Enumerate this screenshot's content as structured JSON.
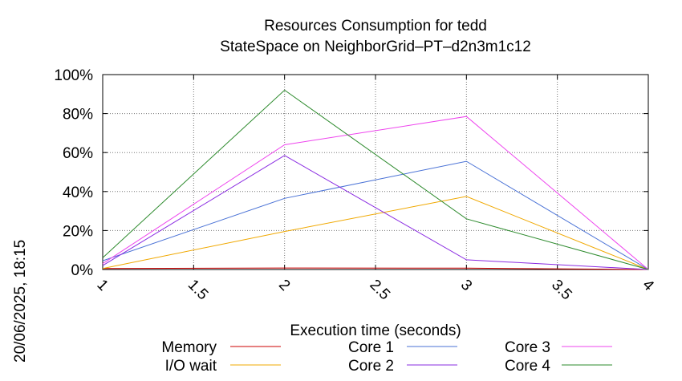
{
  "chart_data": {
    "type": "line",
    "title_lines": [
      "Resources Consumption for tedd",
      "StateSpace on NeighborGrid–PT–d2n3m1c12"
    ],
    "xlabel": "Execution time (seconds)",
    "ylabel": "",
    "xlim": [
      1,
      4
    ],
    "ylim": [
      0,
      100
    ],
    "x_ticks": [
      "1",
      "1.5",
      "2",
      "2.5",
      "3",
      "3.5",
      "4"
    ],
    "y_ticks": [
      "0%",
      "20%",
      "40%",
      "60%",
      "80%",
      "100%"
    ],
    "grid": true,
    "side_stamp": "20/06/2025, 18:15",
    "legend_position": "bottom",
    "x": [
      1,
      2,
      3,
      4
    ],
    "series": [
      {
        "name": "Memory",
        "color": "#cc0000",
        "values": [
          0.5,
          0.8,
          0.7,
          0.0
        ]
      },
      {
        "name": "I/O wait",
        "color": "#f0a800",
        "values": [
          0.5,
          19.5,
          37.5,
          0.0
        ]
      },
      {
        "name": "Core 1",
        "color": "#4a72d6",
        "values": [
          4.5,
          36.5,
          55.5,
          0.0
        ]
      },
      {
        "name": "Core 2",
        "color": "#8a2be2",
        "values": [
          2.0,
          58.5,
          5.0,
          0.0
        ]
      },
      {
        "name": "Core 3",
        "color": "#ee44ee",
        "values": [
          3.0,
          64.0,
          78.5,
          0.0
        ]
      },
      {
        "name": "Core 4",
        "color": "#2e8b2e",
        "values": [
          6.0,
          92.0,
          26.0,
          0.0
        ]
      }
    ]
  }
}
